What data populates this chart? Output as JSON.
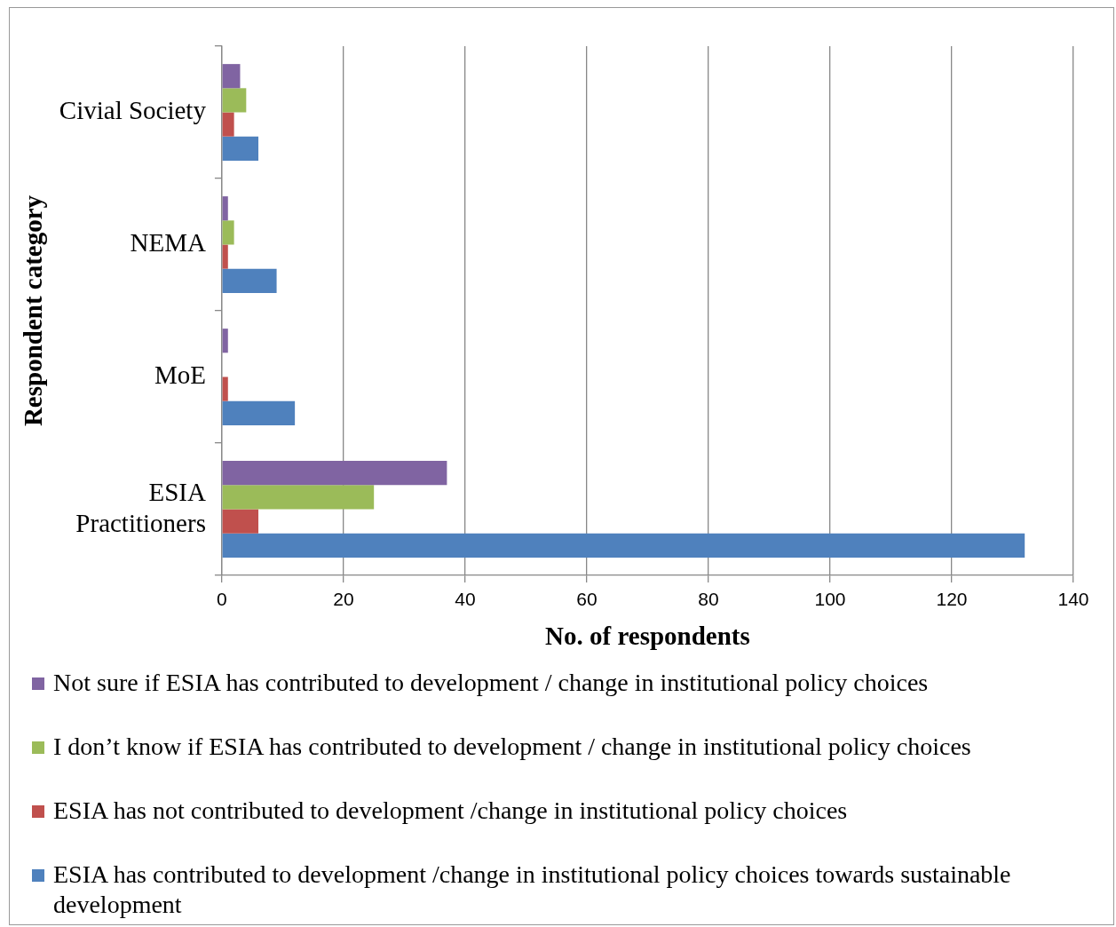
{
  "chart_data": {
    "type": "bar",
    "orientation": "horizontal",
    "xlabel": "No. of respondents",
    "ylabel": "Respondent category",
    "categories": [
      "Civial Society",
      "NEMA",
      "MoE",
      "ESIA Practitioners"
    ],
    "series": [
      {
        "name": "Not sure if  ESIA has contributed to development / change in institutional policy choices",
        "color": "#8064a2",
        "values": [
          3,
          1,
          1,
          37
        ]
      },
      {
        "name": "I don’t know if ESIA has contributed to development / change in institutional policy choices",
        "color": "#9bbb59",
        "values": [
          4,
          2,
          0,
          25
        ]
      },
      {
        "name": "ESIA has not contributed to development /change in institutional policy choices",
        "color": "#c0504d",
        "values": [
          2,
          1,
          1,
          6
        ]
      },
      {
        "name": "ESIA has contributed to development /change in institutional policy choices towards sustainable development",
        "color": "#4f81bd",
        "values": [
          6,
          9,
          12,
          132
        ]
      }
    ],
    "xlim": [
      0,
      140
    ],
    "xticks": [
      0,
      20,
      40,
      60,
      80,
      100,
      120,
      140
    ],
    "grid": "x",
    "legend": "bottom"
  }
}
